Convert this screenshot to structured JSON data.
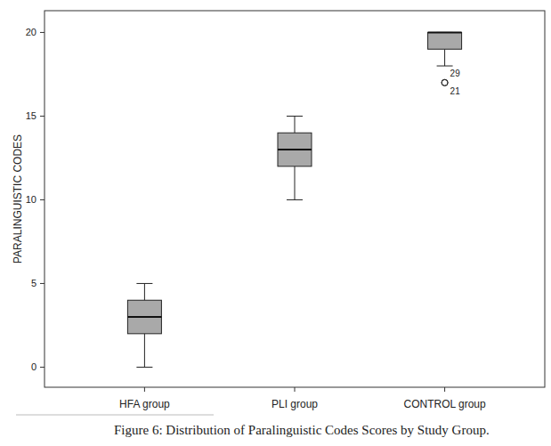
{
  "chart_data": {
    "type": "box",
    "title": "Figure 6: Distribution of Paralinguistic Codes Scores by Study Group.",
    "y_label": "PARALINGUISTIC CODES",
    "categories": [
      "HFA group",
      "PLI group",
      "CONTROL group"
    ],
    "boxes": [
      {
        "min": 0,
        "q1": 2,
        "median": 3,
        "q3": 4,
        "max": 5,
        "outliers": []
      },
      {
        "min": 10,
        "q1": 12,
        "median": 13,
        "q3": 14,
        "max": 15,
        "outliers": []
      },
      {
        "min": 18,
        "q1": 19,
        "median": 20,
        "q3": 20,
        "max": 20,
        "outliers": [
          {
            "value": 17,
            "label": "29"
          },
          {
            "value": 17,
            "label": "21"
          }
        ]
      }
    ],
    "color": "#a9a9a9",
    "ylim": [
      -1.2,
      21.3
    ],
    "yticks": [
      0,
      5,
      10,
      15,
      20
    ],
    "grid": false
  }
}
